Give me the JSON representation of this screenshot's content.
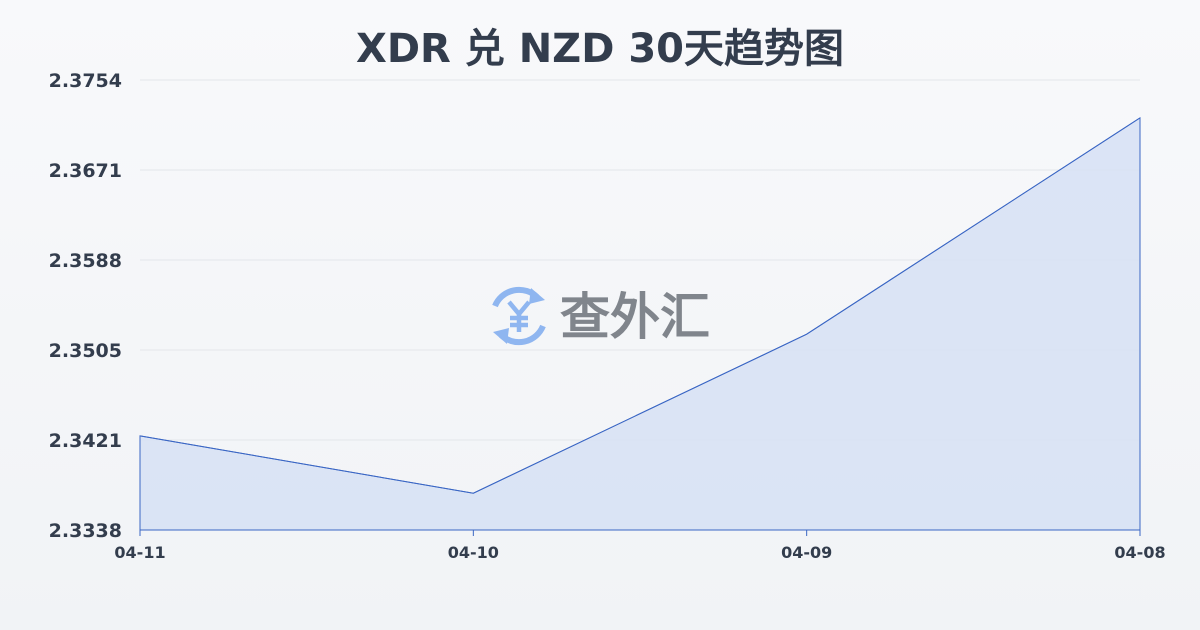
{
  "chart_data": {
    "type": "area",
    "title": "XDR 兑 NZD 30天趋势图",
    "categories": [
      "04-11",
      "04-10",
      "04-09",
      "04-08"
    ],
    "values": [
      2.3425,
      2.3372,
      2.3519,
      2.3719
    ],
    "yticks": [
      "2.3754",
      "2.3671",
      "2.3588",
      "2.3505",
      "2.3421",
      "2.3338"
    ],
    "ylim": [
      2.3338,
      2.3754
    ],
    "grid": true,
    "colors": {
      "line": "#3a66c4",
      "fill": "#d6e1f5",
      "text": "#333d4d"
    }
  },
  "watermark": {
    "text": "查外汇",
    "icon": "yen-exchange-icon",
    "icon_color": "#8fb6f0"
  }
}
